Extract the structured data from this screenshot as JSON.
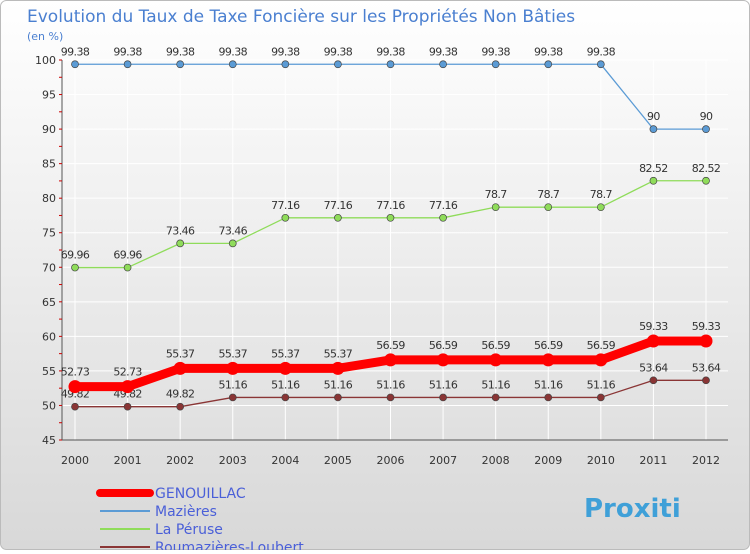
{
  "chart_data": {
    "type": "line",
    "title": "Evolution du Taux de Taxe Foncière sur les Propriétés Non Bâties",
    "ylabel": "(en %)",
    "xlabel": "",
    "categories": [
      "2000",
      "2001",
      "2002",
      "2003",
      "2004",
      "2005",
      "2006",
      "2007",
      "2008",
      "2009",
      "2010",
      "2011",
      "2012"
    ],
    "ylim": [
      45,
      100
    ],
    "yticks": [
      45,
      50,
      55,
      60,
      65,
      70,
      75,
      80,
      85,
      90,
      95,
      100
    ],
    "grid": true,
    "legend_position": "bottom-left",
    "series": [
      {
        "name": "GENOUILLAC",
        "color": "#ff0000",
        "labels": [
          "52.73",
          "52.73",
          "55.37",
          "55.37",
          "55.37",
          "55.37",
          "56.59",
          "56.59",
          "56.59",
          "56.59",
          "56.59",
          "59.33",
          "59.33"
        ],
        "values": [
          52.73,
          52.73,
          55.37,
          55.37,
          55.37,
          55.37,
          56.59,
          56.59,
          56.59,
          56.59,
          56.59,
          59.33,
          59.33
        ]
      },
      {
        "name": "Mazières",
        "color": "#5b9bd5",
        "labels": [
          "99.38",
          "99.38",
          "99.38",
          "99.38",
          "99.38",
          "99.38",
          "99.38",
          "99.38",
          "99.38",
          "99.38",
          "99.38",
          "90",
          "90"
        ],
        "values": [
          99.38,
          99.38,
          99.38,
          99.38,
          99.38,
          99.38,
          99.38,
          99.38,
          99.38,
          99.38,
          99.38,
          90,
          90
        ]
      },
      {
        "name": "La Péruse",
        "color": "#8fdc5a",
        "labels": [
          "69.96",
          "69.96",
          "73.46",
          "73.46",
          "77.16",
          "77.16",
          "77.16",
          "77.16",
          "78.7",
          "78.7",
          "78.7",
          "82.52",
          "82.52"
        ],
        "values": [
          69.96,
          69.96,
          73.46,
          73.46,
          77.16,
          77.16,
          77.16,
          77.16,
          78.7,
          78.7,
          78.7,
          82.52,
          82.52
        ]
      },
      {
        "name": "Roumazières-Loubert",
        "color": "#8a3535",
        "labels": [
          "49.82",
          "49.82",
          "49.82",
          "51.16",
          "51.16",
          "51.16",
          "51.16",
          "51.16",
          "51.16",
          "51.16",
          "51.16",
          "53.64",
          "53.64"
        ],
        "values": [
          49.82,
          49.82,
          49.82,
          51.16,
          51.16,
          51.16,
          51.16,
          51.16,
          51.16,
          51.16,
          51.16,
          53.64,
          53.64
        ]
      }
    ]
  },
  "branding": {
    "logo_text": "Proxiti"
  },
  "colors": {
    "title": "#4a7fd0",
    "legend_text": "#4a5fd8",
    "axis_text": "#333333",
    "grid": "#ffffff",
    "background_top": "#ffffff",
    "background_bottom": "#dcdcdc"
  }
}
